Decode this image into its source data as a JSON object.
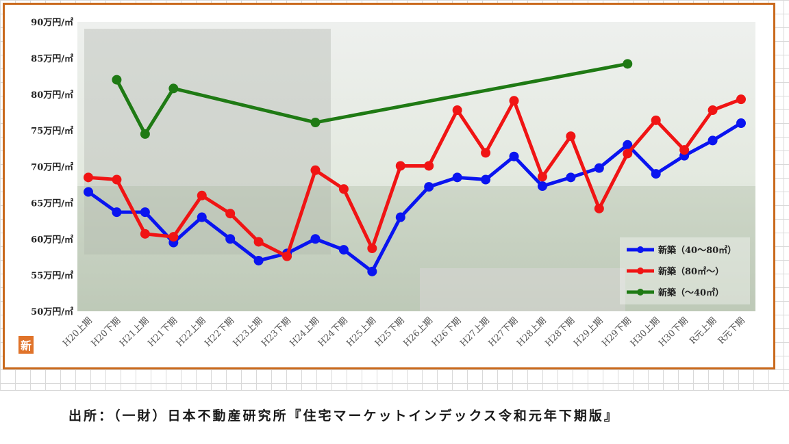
{
  "colors": {
    "frame": "#c9691c",
    "series_mid": "#0a14f0",
    "series_large": "#f01414",
    "series_small": "#1f7a14",
    "plot_bg": "#eef1ea"
  },
  "badge": {
    "text": "新"
  },
  "source": {
    "text": "出所：（一財）日本不動産研究所『住宅マーケットインデックス令和元年下期版』"
  },
  "chart_data": {
    "type": "line",
    "title": "",
    "xlabel": "",
    "ylabel": "",
    "ylim": [
      50,
      90
    ],
    "y_ticks": [
      {
        "value": 90,
        "label": "90万円/㎡"
      },
      {
        "value": 85,
        "label": "85万円/㎡"
      },
      {
        "value": 80,
        "label": "80万円/㎡"
      },
      {
        "value": 75,
        "label": "75万円/㎡"
      },
      {
        "value": 70,
        "label": "70万円/㎡"
      },
      {
        "value": 65,
        "label": "65万円/㎡"
      },
      {
        "value": 60,
        "label": "60万円/㎡"
      },
      {
        "value": 55,
        "label": "55万円/㎡"
      },
      {
        "value": 50,
        "label": "50万円/㎡"
      }
    ],
    "categories": [
      "H20上期",
      "H20下期",
      "H21上期",
      "H21下期",
      "H22上期",
      "H22下期",
      "H23上期",
      "H23下期",
      "H24上期",
      "H24下期",
      "H25上期",
      "H25下期",
      "H26上期",
      "H26下期",
      "H27上期",
      "H27下期",
      "H28上期",
      "H28下期",
      "H29上期",
      "H29下期",
      "H30上期",
      "H30下期",
      "R元上期",
      "R元下期"
    ],
    "series": [
      {
        "name": "新築（40～80㎡）",
        "color": "#0a14f0",
        "values": [
          66.5,
          63.7,
          63.7,
          59.5,
          63.0,
          60.0,
          57.0,
          58.0,
          60.0,
          58.5,
          55.5,
          63.0,
          67.2,
          68.5,
          68.2,
          71.4,
          67.3,
          68.5,
          69.8,
          73.0,
          69.0,
          71.5,
          73.6,
          76.0
        ]
      },
      {
        "name": "新築（80㎡～）",
        "color": "#f01414",
        "values": [
          68.5,
          68.2,
          60.7,
          60.3,
          66.0,
          63.5,
          59.6,
          57.6,
          69.5,
          66.9,
          58.7,
          70.1,
          70.1,
          77.8,
          71.9,
          79.1,
          68.6,
          74.2,
          64.2,
          71.8,
          76.4,
          72.3,
          77.8,
          79.3
        ]
      },
      {
        "name": "新築（～40㎡）",
        "color": "#1f7a14",
        "values": [
          null,
          82.0,
          74.5,
          80.8,
          null,
          null,
          null,
          null,
          76.1,
          null,
          null,
          null,
          null,
          null,
          null,
          null,
          null,
          null,
          null,
          84.2,
          null,
          null,
          null,
          null
        ]
      }
    ],
    "legend_position": "bottom-right",
    "grid": false
  }
}
